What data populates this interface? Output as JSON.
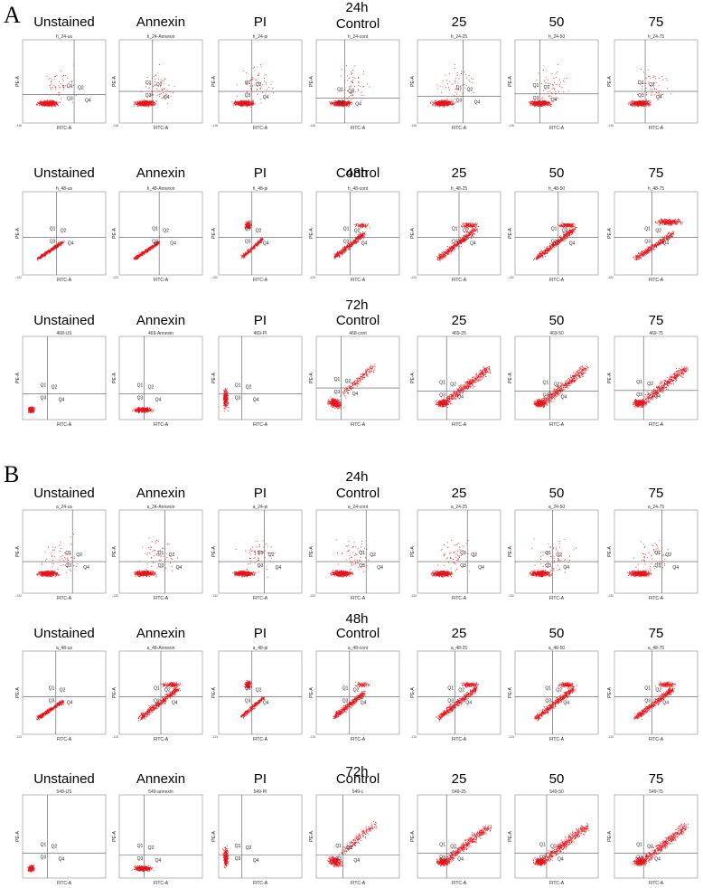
{
  "panels": [
    {
      "letter": "A",
      "rows": [
        {
          "time": "24h",
          "labels": [
            "Unstained",
            "Annexin",
            "PI",
            "Control",
            "25",
            "50",
            "75"
          ],
          "titles": [
            "h_24-us",
            "h_24-Annexin",
            "h_24-pi",
            "h_24-cont",
            "h_24-25",
            "h_24-50",
            "h_24-75"
          ],
          "axis_min": [
            "-116",
            "-116",
            "-116",
            "-116",
            "-116",
            "-116",
            "-116"
          ]
        },
        {
          "time": "48h",
          "labels": [
            "Unstained",
            "Annexin",
            "PI",
            "Control",
            "25",
            "50",
            "75"
          ],
          "titles": [
            "h_48-us",
            "h_48-Annexin",
            "h_48-pi",
            "h_48-cont",
            "h_48-25",
            "h_48-50",
            "h_48-75"
          ],
          "axis_min": [
            "-122",
            "-122",
            "-122",
            "-122",
            "-122",
            "-122",
            "-122"
          ]
        },
        {
          "time": "72h",
          "labels": [
            "Unstained",
            "Annexin",
            "PI",
            "Control",
            "25",
            "50",
            "75"
          ],
          "titles": [
            "468-US",
            "469-Annexin",
            "469-PI",
            "468-cont",
            "469-25",
            "469-50",
            "469-75"
          ],
          "axis_min": [
            "",
            "",
            "",
            "",
            "",
            "",
            ""
          ]
        }
      ]
    },
    {
      "letter": "B",
      "rows": [
        {
          "time": "24h",
          "labels": [
            "Unstained",
            "Annexin",
            "PI",
            "Control",
            "25",
            "50",
            "75"
          ],
          "titles": [
            "a_24-us",
            "a_24-Annexin",
            "a_24-pi",
            "a_24-cont",
            "a_24-25",
            "a_24-50",
            "a_24-75"
          ],
          "axis_min": [
            "-132",
            "-132",
            "-132",
            "-132",
            "-132",
            "-132",
            "-132"
          ]
        },
        {
          "time": "48h",
          "labels": [
            "Unstained",
            "Annexin",
            "PI",
            "Control",
            "25",
            "50",
            "75"
          ],
          "titles": [
            "a_48-us",
            "a_48-Annexin",
            "a_48-pi",
            "a_48-cont",
            "a_48-25",
            "a_48-50",
            "a_48-75"
          ],
          "axis_min": [
            "-113",
            "-113",
            "-113",
            "-113",
            "-113",
            "-113",
            "-113"
          ]
        },
        {
          "time": "72h",
          "labels": [
            "Unstained",
            "Annexin",
            "PI",
            "Control",
            "25",
            "50",
            "75"
          ],
          "titles": [
            "549-US",
            "549-annexin",
            "549-PI",
            "549-c",
            "549-25",
            "549-50",
            "549-75"
          ],
          "axis_min": [
            "",
            "",
            "",
            "",
            "",
            "",
            ""
          ]
        }
      ]
    }
  ],
  "axes": {
    "x": "FITC-A",
    "y": "PE-A"
  },
  "quadrants": [
    "Q1",
    "Q2",
    "Q3",
    "Q4"
  ],
  "colors": {
    "dots": "#e8141a",
    "lines": "#555555",
    "frame": "#888888"
  }
}
